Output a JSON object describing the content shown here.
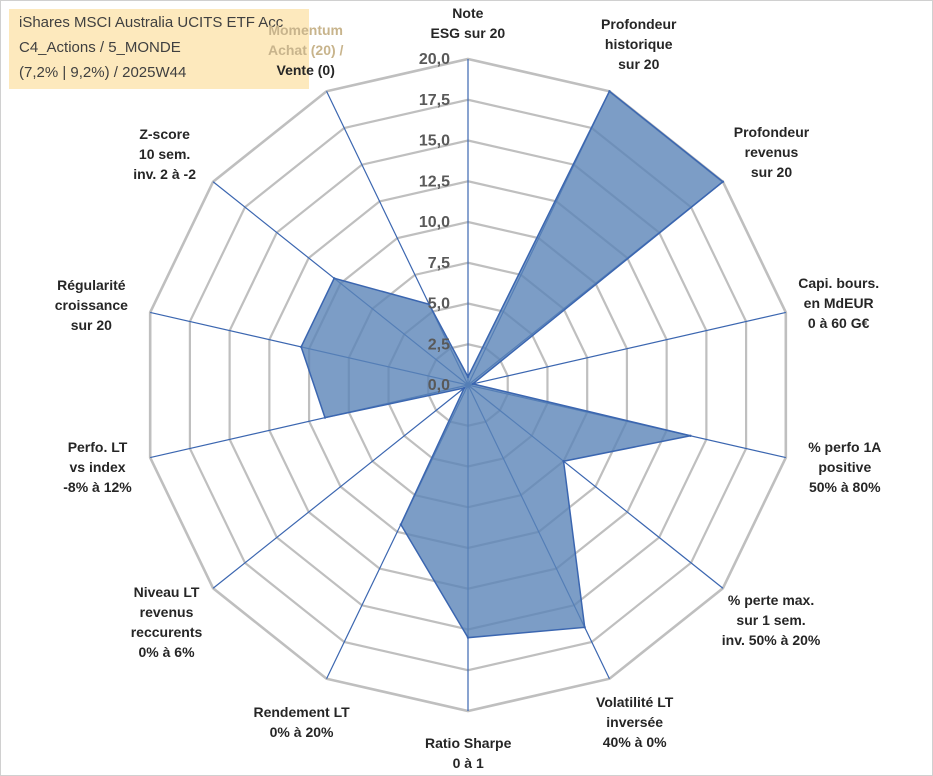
{
  "info": {
    "line1": "iShares MSCI Australia UCITS ETF Acc",
    "line2": "C4_Actions / 5_MONDE",
    "line3": "(7,2% | 9,2%) / 2025W44"
  },
  "colors": {
    "fill": "#5b84b8",
    "stroke": "#3b66b0",
    "grid": "#bfbfbf",
    "spoke": "#3b66b0",
    "info_bg": "#fde9bd"
  },
  "chart_data": {
    "type": "radar",
    "r_range": [
      0,
      20
    ],
    "ticks": [
      "0,0",
      "2,5",
      "5,0",
      "7,5",
      "10,0",
      "12,5",
      "15,0",
      "17,5",
      "20,0"
    ],
    "tick_values": [
      0,
      2.5,
      5,
      7.5,
      10,
      12.5,
      15,
      17.5,
      20
    ],
    "axes": [
      {
        "lines": [
          "Note",
          "ESG sur 20"
        ],
        "value": 0.5
      },
      {
        "lines": [
          "Profondeur",
          "historique",
          "sur 20"
        ],
        "value": 20
      },
      {
        "lines": [
          "Profondeur",
          "revenus",
          "sur 20"
        ],
        "value": 20
      },
      {
        "lines": [
          "Capi. bours.",
          "en MdEUR",
          "0 à 60 G€"
        ],
        "value": 0.3
      },
      {
        "lines": [
          "% perfo 1A",
          "positive",
          "50% à 80%"
        ],
        "value": 14
      },
      {
        "lines": [
          "% perte max.",
          "sur 1 sem.",
          "inv. 50% à 20%"
        ],
        "value": 7.5
      },
      {
        "lines": [
          "Volatilité LT",
          "inversée",
          "40% à 0%"
        ],
        "value": 16.5
      },
      {
        "lines": [
          "Ratio Sharpe",
          "0 à 1"
        ],
        "value": 15.5
      },
      {
        "lines": [
          "Rendement LT",
          "0% à 20%"
        ],
        "value": 9.5
      },
      {
        "lines": [
          "Niveau LT",
          "revenus",
          "reccurents",
          "0% à 6%"
        ],
        "value": 0.3
      },
      {
        "lines": [
          "Perfo. LT",
          "vs index",
          "-8% à 12%"
        ],
        "value": 9
      },
      {
        "lines": [
          "Régularité",
          "croissance",
          "sur 20"
        ],
        "value": 10.5
      },
      {
        "lines": [
          "Z-score",
          "10 sem.",
          "inv. 2 à -2"
        ],
        "value": 10.5
      },
      {
        "lines": [
          "Momentum",
          "Achat (20) /",
          "Vente (0)"
        ],
        "value": 5.5
      }
    ]
  }
}
